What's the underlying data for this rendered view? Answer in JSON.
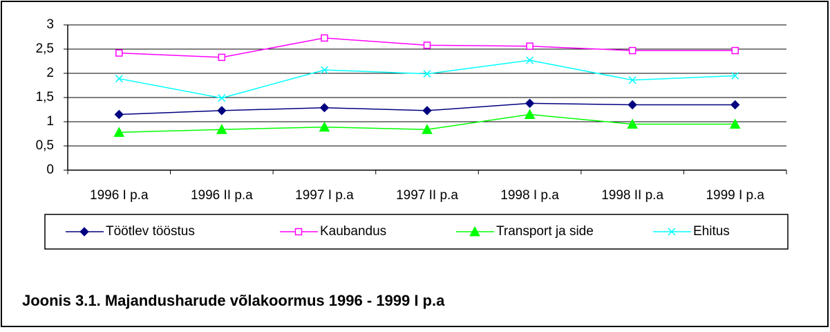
{
  "chart_data": {
    "type": "line",
    "title": "Joonis 3.1. Majandusharude võlakoormus 1996 - 1999 I p.a",
    "categories": [
      "1996 I p.a",
      "1996 II p.a",
      "1997 I p.a",
      "1997 II p.a",
      "1998 I p.a",
      "1998 II p.a",
      "1999 I p.a"
    ],
    "series": [
      {
        "name": "Töötlev tööstus",
        "color": "#000080",
        "marker": "diamond",
        "values": [
          1.15,
          1.23,
          1.29,
          1.23,
          1.38,
          1.35,
          1.35
        ]
      },
      {
        "name": "Kaubandus",
        "color": "#ff00ff",
        "marker": "square",
        "values": [
          2.42,
          2.33,
          2.73,
          2.58,
          2.56,
          2.47,
          2.47
        ]
      },
      {
        "name": "Transport ja side",
        "color": "#00ff00",
        "marker": "triangle",
        "values": [
          0.78,
          0.84,
          0.89,
          0.84,
          1.15,
          0.95,
          0.95
        ]
      },
      {
        "name": "Ehitus",
        "color": "#00ffff",
        "marker": "x",
        "values": [
          1.89,
          1.49,
          2.07,
          1.99,
          2.27,
          1.86,
          1.95
        ]
      }
    ],
    "ylim": [
      0,
      3
    ],
    "yticks": [
      0,
      {
        "value": 0.5,
        "label": "0,5"
      },
      1,
      {
        "value": 1.5,
        "label": "1,5"
      },
      2,
      {
        "value": 2.5,
        "label": "2,5"
      },
      3
    ],
    "grid": true,
    "legend": "bottom"
  }
}
